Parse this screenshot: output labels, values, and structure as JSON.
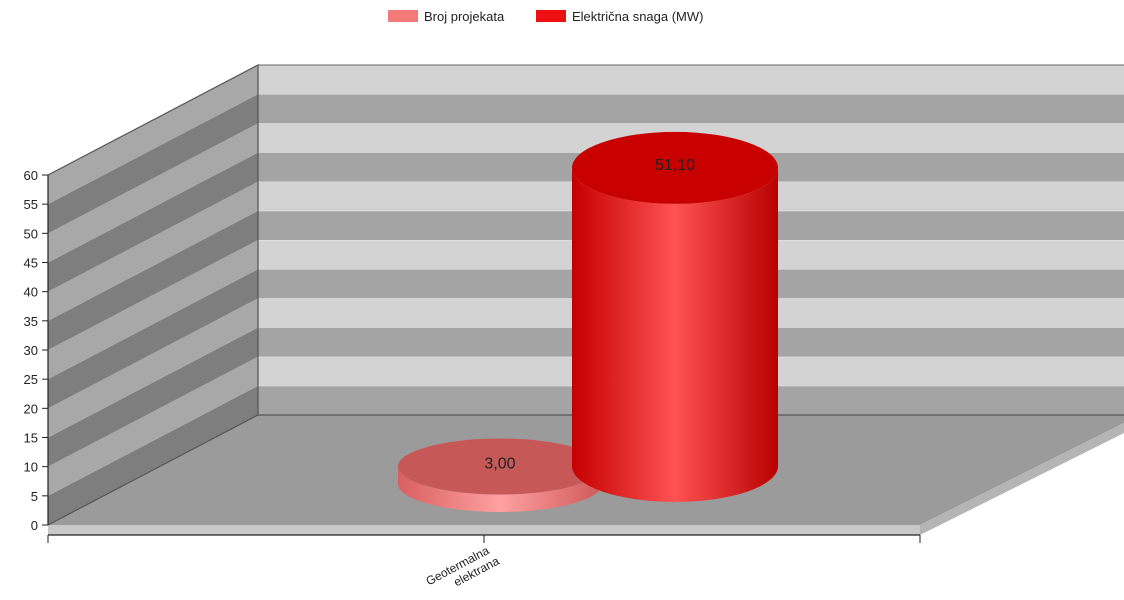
{
  "chart_data": {
    "type": "bar",
    "style": "3d-cylinder",
    "categories": [
      "Geotermalna elektrana"
    ],
    "category_label_lines": [
      [
        "Geotermalna",
        "elektrana"
      ]
    ],
    "series": [
      {
        "name": "Broj projekata",
        "values": [
          3.0
        ],
        "value_labels": [
          "3,00"
        ],
        "color": "#f47a7a"
      },
      {
        "name": "Električna snaga (MW)",
        "values": [
          51.1
        ],
        "value_labels": [
          "51,10"
        ],
        "color": "#ee1111"
      }
    ],
    "title": "",
    "xlabel": "",
    "ylabel": "",
    "ylim": [
      0,
      60
    ],
    "yticks": [
      "0",
      "5",
      "10",
      "15",
      "20",
      "25",
      "30",
      "35",
      "40",
      "45",
      "50",
      "55",
      "60"
    ],
    "grid": true,
    "legend_position": "top-center",
    "colors": {
      "back_wall_light": "#d3d3d3",
      "back_wall_dark": "#a4a4a4",
      "side_wall_light": "#a8a8a8",
      "side_wall_dark": "#7e7e7e",
      "floor": "#9b9b9b",
      "floor_edge": "#c8c8c8"
    }
  }
}
